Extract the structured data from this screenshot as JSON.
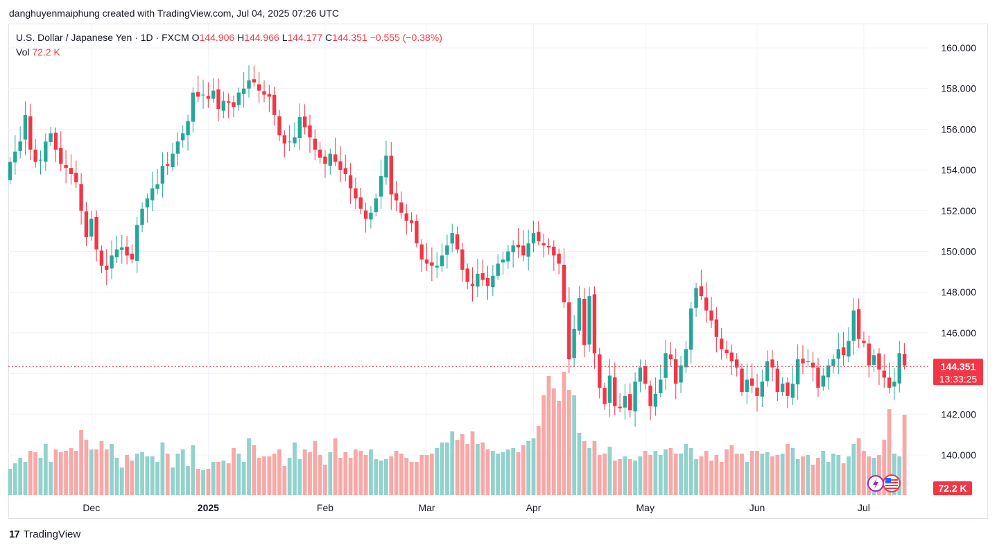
{
  "credit": "danghuyenmaiphung created with TradingView.com, Jul 04, 2025 07:26 UTC",
  "legend": {
    "symbol": "U.S. Dollar / Japanese Yen · 1D · FXCM",
    "o_label": "O",
    "o": "144.906",
    "h_label": "H",
    "h": "144.966",
    "l_label": "L",
    "l": "144.177",
    "c_label": "C",
    "c": "144.351",
    "change": "−0.555 (−0.38%)",
    "vol_label": "Vol",
    "vol": "72.2 K"
  },
  "badges": {
    "price": "144.351",
    "countdown": "13:33:25",
    "volume": "72.2 K"
  },
  "footer": {
    "logo": "TradingView"
  },
  "colors": {
    "up": "#26a69a",
    "down": "#f23645",
    "vol_up": "#92d2cc",
    "vol_down": "#f7a9a7"
  },
  "chart_data": {
    "type": "candlestick",
    "ylim": [
      138.5,
      160.8
    ],
    "yticks": [
      "160.000",
      "158.000",
      "156.000",
      "154.000",
      "152.000",
      "150.000",
      "148.000",
      "146.000",
      "144.000",
      "142.000",
      "140.000"
    ],
    "last_price": 144.351,
    "xticks": [
      {
        "label": "Dec",
        "idx": 16,
        "bold": false
      },
      {
        "label": "2025",
        "idx": 39,
        "bold": true
      },
      {
        "label": "Feb",
        "idx": 62,
        "bold": false
      },
      {
        "label": "Mar",
        "idx": 82,
        "bold": false
      },
      {
        "label": "Apr",
        "idx": 103,
        "bold": false
      },
      {
        "label": "May",
        "idx": 125,
        "bold": false
      },
      {
        "label": "Jun",
        "idx": 147,
        "bold": false
      },
      {
        "label": "Jul",
        "idx": 168,
        "bold": false
      }
    ],
    "closes": [
      154.4,
      154.9,
      155.4,
      156.7,
      155.0,
      154.4,
      154.5,
      155.4,
      155.8,
      155.0,
      154.3,
      154.1,
      153.8,
      153.4,
      152.0,
      150.7,
      151.6,
      150.1,
      149.3,
      149.1,
      149.8,
      150.1,
      150.2,
      149.8,
      149.6,
      151.3,
      152.1,
      152.6,
      153.1,
      153.3,
      154.2,
      154.2,
      154.8,
      155.4,
      155.8,
      156.4,
      157.8,
      157.6,
      157.7,
      157.5,
      157.9,
      157.0,
      157.4,
      157.3,
      157.1,
      157.8,
      158.0,
      158.4,
      158.3,
      157.9,
      157.7,
      157.6,
      156.7,
      155.7,
      155.3,
      155.4,
      155.6,
      156.6,
      156.1,
      155.6,
      155.0,
      154.6,
      154.3,
      154.8,
      154.4,
      154.0,
      153.8,
      153.1,
      152.6,
      152.1,
      151.6,
      151.9,
      152.6,
      153.7,
      154.7,
      152.8,
      152.5,
      151.9,
      151.5,
      151.4,
      150.4,
      149.6,
      149.4,
      149.3,
      149.3,
      149.8,
      150.3,
      150.9,
      150.1,
      149.1,
      148.5,
      148.3,
      148.9,
      148.6,
      148.3,
      148.8,
      149.4,
      149.6,
      150.0,
      150.3,
      150.2,
      149.8,
      150.4,
      150.9,
      150.5,
      150.3,
      150.2,
      149.8,
      149.4,
      147.5,
      144.7,
      146.2,
      147.7,
      145.4,
      147.8,
      145.0,
      143.3,
      142.5,
      143.9,
      142.4,
      142.3,
      142.9,
      142.2,
      143.6,
      144.3,
      143.5,
      142.4,
      143.0,
      143.7,
      145.0,
      144.7,
      143.5,
      144.4,
      145.2,
      147.2,
      148.2,
      147.8,
      147.1,
      146.6,
      145.8,
      145.2,
      145.0,
      144.6,
      144.3,
      143.1,
      143.7,
      143.4,
      142.9,
      143.6,
      144.6,
      144.3,
      143.1,
      143.5,
      142.9,
      143.5,
      144.7,
      144.5,
      144.6,
      144.3,
      143.3,
      143.9,
      144.4,
      144.7,
      145.2,
      144.9,
      145.6,
      147.1,
      145.7,
      145.5,
      144.4,
      144.9,
      144.2,
      143.8,
      143.3,
      143.6,
      145.0,
      144.4
    ],
    "volumes": [
      19,
      23,
      27,
      24,
      32,
      31,
      27,
      37,
      24,
      33,
      31,
      32,
      34,
      32,
      47,
      40,
      33,
      33,
      39,
      33,
      37,
      27,
      20,
      29,
      25,
      30,
      31,
      28,
      28,
      24,
      38,
      30,
      20,
      30,
      33,
      21,
      36,
      19,
      18,
      19,
      24,
      24,
      25,
      23,
      34,
      30,
      24,
      41,
      36,
      27,
      28,
      28,
      30,
      33,
      21,
      27,
      38,
      26,
      33,
      31,
      39,
      29,
      22,
      31,
      41,
      27,
      31,
      27,
      33,
      32,
      29,
      33,
      26,
      25,
      26,
      28,
      32,
      30,
      27,
      24,
      24,
      29,
      29,
      30,
      34,
      38,
      38,
      46,
      40,
      44,
      37,
      46,
      37,
      38,
      33,
      32,
      30,
      31,
      33,
      34,
      31,
      36,
      39,
      41,
      50,
      72,
      86,
      77,
      68,
      89,
      76,
      72,
      45,
      39,
      34,
      39,
      29,
      30,
      35,
      25,
      26,
      28,
      26,
      25,
      28,
      32,
      29,
      32,
      29,
      33,
      34,
      30,
      30,
      37,
      34,
      26,
      28,
      32,
      25,
      29,
      24,
      33,
      36,
      30,
      30,
      24,
      32,
      32,
      30,
      31,
      28,
      29,
      30,
      37,
      34,
      26,
      28,
      29,
      22,
      27,
      32,
      24,
      30,
      29,
      23,
      28,
      37,
      41,
      32,
      28,
      27,
      29,
      40,
      62,
      30,
      28,
      58,
      10,
      6,
      2
    ],
    "current_volume": "72.2 K"
  }
}
